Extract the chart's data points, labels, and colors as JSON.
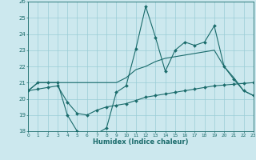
{
  "background_color": "#cce8ee",
  "grid_color": "#99ccd6",
  "line_color": "#1a6b6b",
  "xlim": [
    0,
    23
  ],
  "ylim": [
    18,
    26
  ],
  "xticks": [
    0,
    1,
    2,
    3,
    4,
    5,
    6,
    7,
    8,
    9,
    10,
    11,
    12,
    13,
    14,
    15,
    16,
    17,
    18,
    19,
    20,
    21,
    22,
    23
  ],
  "yticks": [
    18,
    19,
    20,
    21,
    22,
    23,
    24,
    25,
    26
  ],
  "line1_x": [
    0,
    1,
    2,
    3,
    4,
    5,
    6,
    7,
    8,
    9,
    10,
    11,
    12,
    13,
    14,
    15,
    16,
    17,
    18,
    19,
    20,
    21,
    22,
    23
  ],
  "line1_y": [
    20.5,
    21.0,
    21.0,
    21.0,
    19.0,
    18.0,
    17.85,
    17.85,
    18.2,
    20.4,
    20.8,
    23.1,
    25.7,
    23.8,
    21.7,
    23.0,
    23.5,
    23.3,
    23.5,
    24.5,
    22.0,
    21.2,
    20.5,
    20.2
  ],
  "line2_x": [
    0,
    1,
    2,
    3,
    9,
    10,
    11,
    12,
    13,
    14,
    15,
    16,
    17,
    18,
    19,
    20,
    21,
    22,
    23
  ],
  "line2_y": [
    20.5,
    21.0,
    21.0,
    21.0,
    21.0,
    21.3,
    21.8,
    22.0,
    22.3,
    22.5,
    22.6,
    22.7,
    22.8,
    22.9,
    23.0,
    22.0,
    21.3,
    20.5,
    20.2
  ],
  "line3_x": [
    0,
    1,
    2,
    3,
    4,
    5,
    6,
    7,
    8,
    9,
    10,
    11,
    12,
    13,
    14,
    15,
    16,
    17,
    18,
    19,
    20,
    21,
    22,
    23
  ],
  "line3_y": [
    20.5,
    20.6,
    20.7,
    20.8,
    19.8,
    19.1,
    19.0,
    19.3,
    19.5,
    19.6,
    19.7,
    19.9,
    20.1,
    20.2,
    20.3,
    20.4,
    20.5,
    20.6,
    20.7,
    20.8,
    20.85,
    20.9,
    20.95,
    21.0
  ],
  "xlabel": "Humidex (Indice chaleur)"
}
